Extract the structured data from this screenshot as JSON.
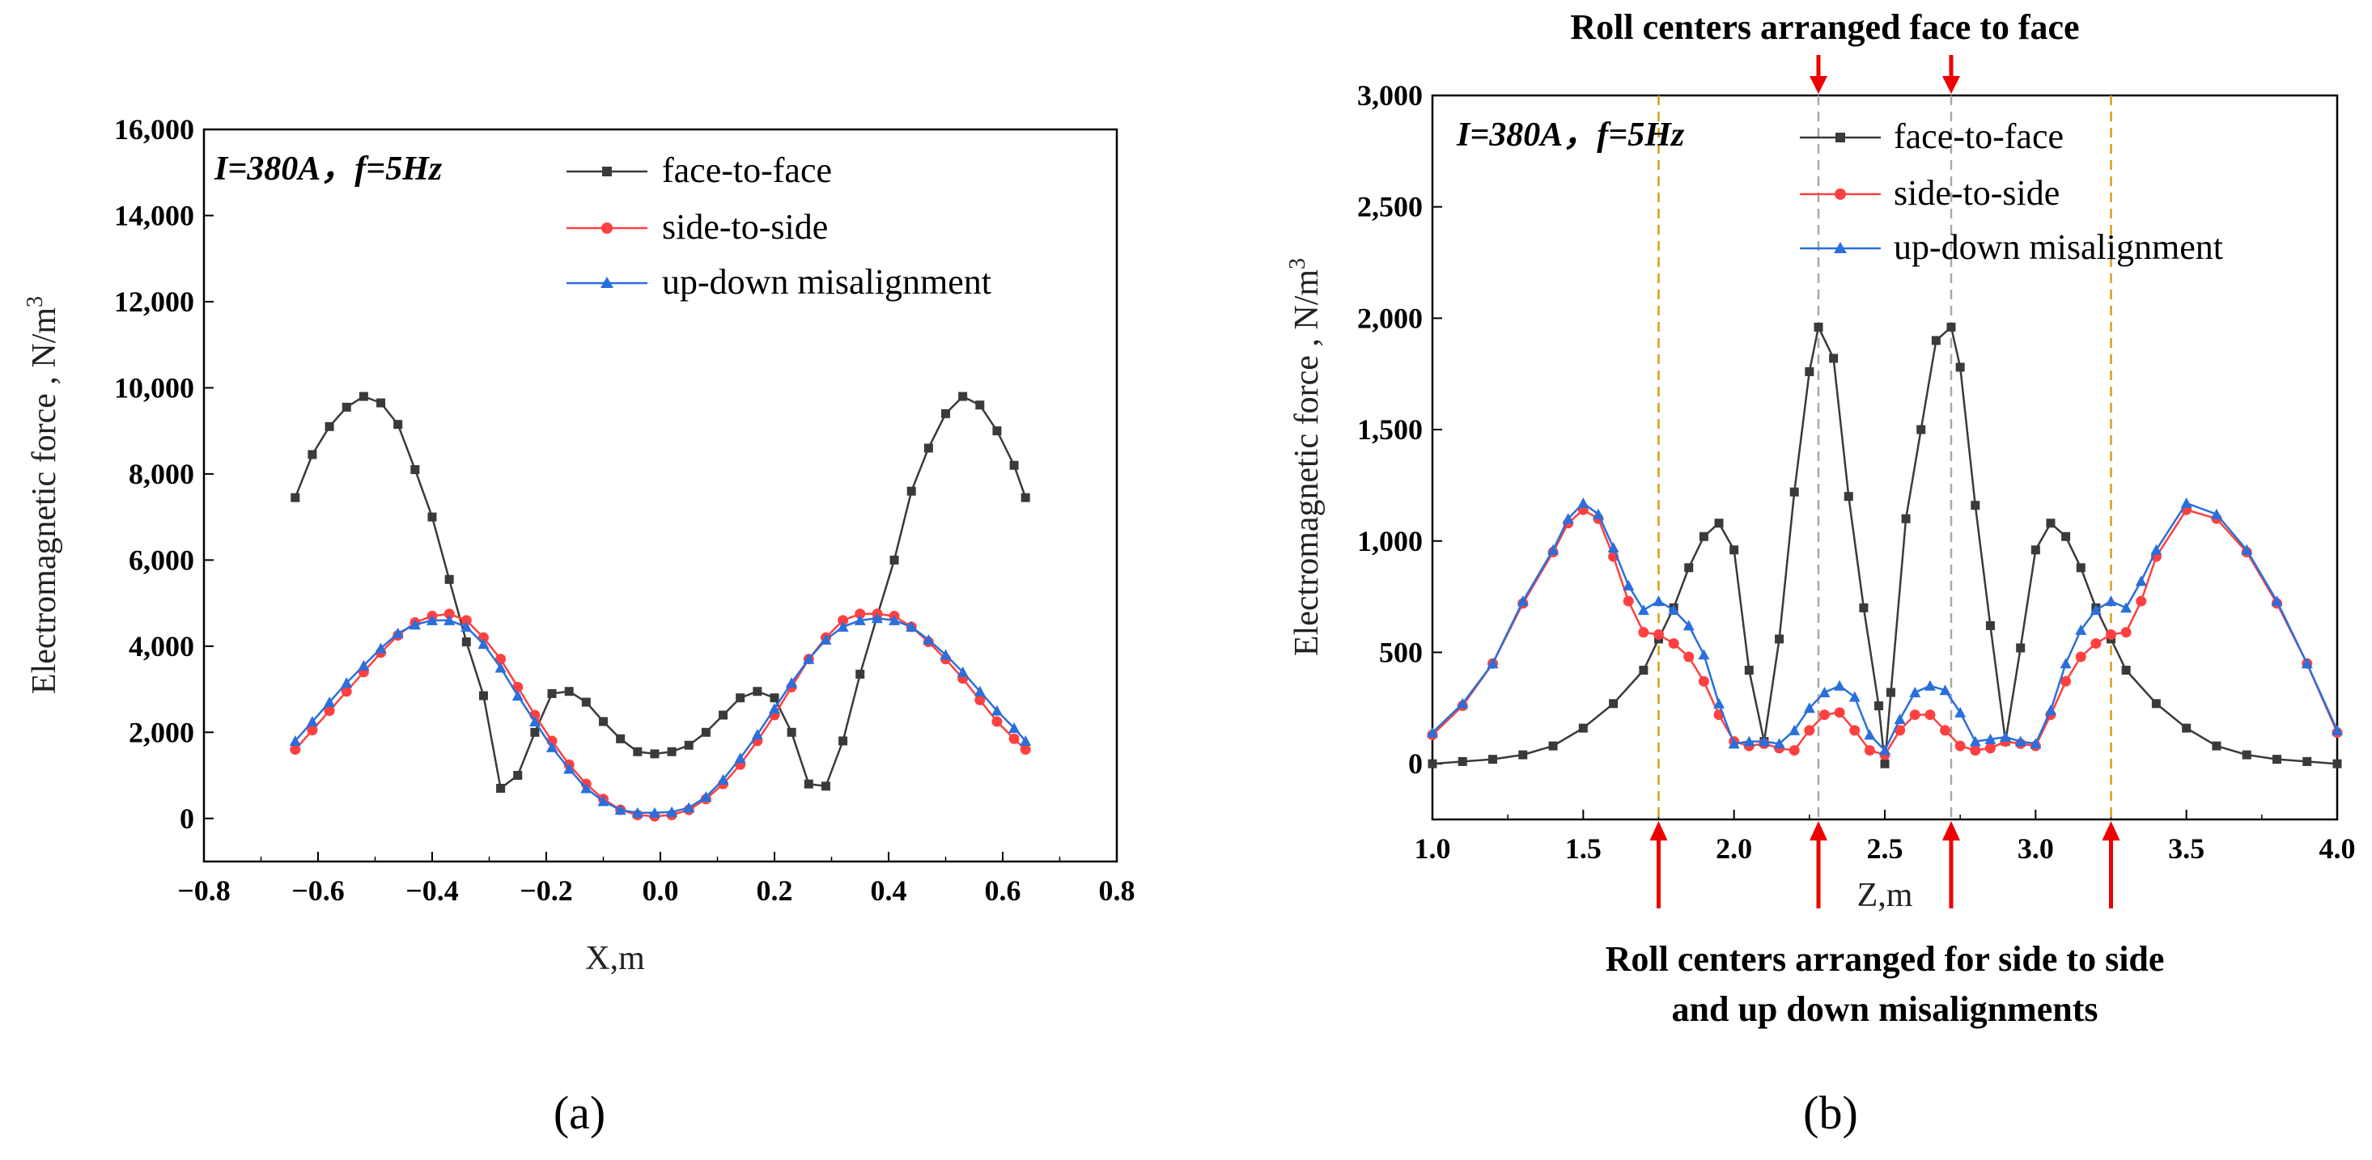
{
  "chart_data": [
    {
      "type": "line",
      "id": "a",
      "caption": "(a)",
      "annotation": "I=380A，f=5Hz",
      "xlabel": "X,m",
      "ylabel": "Electromagnetic force , N/m",
      "ylabel_sup": "3",
      "xlim": [
        -0.8,
        0.8
      ],
      "ylim": [
        -1000,
        16000
      ],
      "xticks": [
        -0.8,
        -0.6,
        -0.4,
        -0.2,
        0.0,
        0.2,
        0.4,
        0.6,
        0.8
      ],
      "xtick_labels": [
        "−0.8",
        "−0.6",
        "−0.4",
        "−0.2",
        "0.0",
        "0.2",
        "0.4",
        "0.6",
        "0.8"
      ],
      "yticks": [
        0,
        2000,
        4000,
        6000,
        8000,
        10000,
        12000,
        14000,
        16000
      ],
      "ytick_labels": [
        "0",
        "2,000",
        "4,000",
        "6,000",
        "8,000",
        "10,000",
        "12,000",
        "14,000",
        "16,000"
      ],
      "legend_position": "top-right",
      "series": [
        {
          "name": "face-to-face",
          "color": "#3a3a3a",
          "marker": "square",
          "x": [
            -0.64,
            -0.61,
            -0.58,
            -0.55,
            -0.52,
            -0.49,
            -0.46,
            -0.43,
            -0.4,
            -0.37,
            -0.34,
            -0.31,
            -0.28,
            -0.25,
            -0.22,
            -0.19,
            -0.16,
            -0.13,
            -0.1,
            -0.07,
            -0.04,
            -0.01,
            0.02,
            0.05,
            0.08,
            0.11,
            0.14,
            0.17,
            0.2,
            0.23,
            0.26,
            0.29,
            0.32,
            0.35,
            0.38,
            0.41,
            0.44,
            0.47,
            0.5,
            0.53,
            0.56,
            0.59,
            0.62,
            0.64
          ],
          "y": [
            7450,
            8450,
            9100,
            9550,
            9800,
            9650,
            9150,
            8100,
            7000,
            5550,
            4100,
            2850,
            700,
            1000,
            2000,
            2900,
            2950,
            2700,
            2250,
            1850,
            1550,
            1500,
            1550,
            1700,
            2000,
            2400,
            2800,
            2950,
            2800,
            2000,
            800,
            750,
            1800,
            3350,
            4700,
            6000,
            7600,
            8600,
            9400,
            9800,
            9600,
            9000,
            8200,
            7450
          ]
        },
        {
          "name": "side-to-side",
          "color": "#ff4040",
          "marker": "circle",
          "x": [
            -0.64,
            -0.61,
            -0.58,
            -0.55,
            -0.52,
            -0.49,
            -0.46,
            -0.43,
            -0.4,
            -0.37,
            -0.34,
            -0.31,
            -0.28,
            -0.25,
            -0.22,
            -0.19,
            -0.16,
            -0.13,
            -0.1,
            -0.07,
            -0.04,
            -0.01,
            0.02,
            0.05,
            0.08,
            0.11,
            0.14,
            0.17,
            0.2,
            0.23,
            0.26,
            0.29,
            0.32,
            0.35,
            0.38,
            0.41,
            0.44,
            0.47,
            0.5,
            0.53,
            0.56,
            0.59,
            0.62,
            0.64
          ],
          "y": [
            1600,
            2050,
            2500,
            2950,
            3400,
            3850,
            4250,
            4550,
            4700,
            4750,
            4600,
            4200,
            3700,
            3050,
            2400,
            1800,
            1250,
            800,
            450,
            200,
            80,
            50,
            80,
            200,
            450,
            800,
            1250,
            1800,
            2400,
            3050,
            3700,
            4200,
            4600,
            4750,
            4750,
            4700,
            4450,
            4100,
            3700,
            3250,
            2750,
            2250,
            1850,
            1600
          ]
        },
        {
          "name": "up-down misalignment",
          "color": "#2a6fdb",
          "marker": "triangle",
          "x": [
            -0.64,
            -0.61,
            -0.58,
            -0.55,
            -0.52,
            -0.49,
            -0.46,
            -0.43,
            -0.4,
            -0.37,
            -0.34,
            -0.31,
            -0.28,
            -0.25,
            -0.22,
            -0.19,
            -0.16,
            -0.13,
            -0.1,
            -0.07,
            -0.04,
            -0.01,
            0.02,
            0.05,
            0.08,
            0.11,
            0.14,
            0.17,
            0.2,
            0.23,
            0.26,
            0.29,
            0.32,
            0.35,
            0.38,
            0.41,
            0.44,
            0.47,
            0.5,
            0.53,
            0.56,
            0.59,
            0.62,
            0.64
          ],
          "y": [
            1800,
            2250,
            2700,
            3150,
            3550,
            3950,
            4300,
            4500,
            4600,
            4600,
            4450,
            4050,
            3500,
            2850,
            2250,
            1650,
            1150,
            700,
            400,
            200,
            130,
            130,
            150,
            250,
            500,
            900,
            1400,
            1950,
            2550,
            3150,
            3700,
            4150,
            4450,
            4600,
            4650,
            4600,
            4450,
            4150,
            3800,
            3400,
            2950,
            2500,
            2100,
            1800
          ]
        }
      ]
    },
    {
      "type": "line",
      "id": "b",
      "caption": "(b)",
      "annotation": "I=380A，f=5Hz",
      "xlabel": "Z,m",
      "ylabel": "Electromagnetic force , N/m",
      "ylabel_sup": "3",
      "xlim": [
        1.0,
        4.0
      ],
      "ylim": [
        -250,
        3000
      ],
      "xticks": [
        1.0,
        1.5,
        2.0,
        2.5,
        3.0,
        3.5,
        4.0
      ],
      "xtick_labels": [
        "1.0",
        "1.5",
        "2.0",
        "2.5",
        "3.0",
        "3.5",
        "4.0"
      ],
      "yticks": [
        0,
        500,
        1000,
        1500,
        2000,
        2500,
        3000
      ],
      "ytick_labels": [
        "0",
        "500",
        "1,000",
        "1,500",
        "2,000",
        "2,500",
        "3,000"
      ],
      "legend_position": "top-right",
      "top_note": "Roll centers arranged face to face",
      "bottom_note_line1": "Roll centers arranged for side to side",
      "bottom_note_line2": "and up down misalignments",
      "face_centers": [
        2.28,
        2.72
      ],
      "side_centers": [
        1.75,
        2.28,
        2.72,
        3.25
      ],
      "series": [
        {
          "name": "face-to-face",
          "color": "#3a3a3a",
          "marker": "square",
          "x": [
            1.0,
            1.1,
            1.2,
            1.3,
            1.4,
            1.5,
            1.6,
            1.7,
            1.75,
            1.8,
            1.85,
            1.9,
            1.95,
            2.0,
            2.05,
            2.1,
            2.15,
            2.2,
            2.25,
            2.28,
            2.33,
            2.38,
            2.43,
            2.48,
            2.5,
            2.52,
            2.57,
            2.62,
            2.67,
            2.72,
            2.75,
            2.8,
            2.85,
            2.9,
            2.95,
            3.0,
            3.05,
            3.1,
            3.15,
            3.2,
            3.25,
            3.3,
            3.4,
            3.5,
            3.6,
            3.7,
            3.8,
            3.9,
            4.0
          ],
          "y": [
            0,
            10,
            20,
            40,
            80,
            160,
            270,
            420,
            560,
            700,
            880,
            1020,
            1080,
            960,
            420,
            100,
            560,
            1220,
            1760,
            1960,
            1820,
            1200,
            700,
            260,
            0,
            320,
            1100,
            1500,
            1900,
            1960,
            1780,
            1160,
            620,
            100,
            520,
            960,
            1080,
            1020,
            880,
            700,
            560,
            420,
            270,
            160,
            80,
            40,
            20,
            10,
            0
          ]
        },
        {
          "name": "side-to-side",
          "color": "#ff4040",
          "marker": "circle",
          "x": [
            1.0,
            1.1,
            1.2,
            1.3,
            1.4,
            1.45,
            1.5,
            1.55,
            1.6,
            1.65,
            1.7,
            1.75,
            1.8,
            1.85,
            1.9,
            1.95,
            2.0,
            2.05,
            2.1,
            2.15,
            2.2,
            2.25,
            2.3,
            2.35,
            2.4,
            2.45,
            2.5,
            2.55,
            2.6,
            2.65,
            2.7,
            2.75,
            2.8,
            2.85,
            2.9,
            2.95,
            3.0,
            3.05,
            3.1,
            3.15,
            3.2,
            3.25,
            3.3,
            3.35,
            3.4,
            3.5,
            3.6,
            3.7,
            3.8,
            3.9,
            4.0
          ],
          "y": [
            130,
            260,
            450,
            720,
            950,
            1080,
            1140,
            1100,
            930,
            730,
            590,
            580,
            540,
            480,
            370,
            220,
            100,
            80,
            90,
            70,
            60,
            150,
            220,
            230,
            150,
            60,
            40,
            150,
            220,
            220,
            150,
            80,
            60,
            70,
            100,
            90,
            80,
            220,
            370,
            480,
            540,
            580,
            590,
            730,
            930,
            1140,
            1100,
            950,
            720,
            450,
            140
          ]
        },
        {
          "name": "up-down misalignment",
          "color": "#2a6fdb",
          "marker": "triangle",
          "x": [
            1.0,
            1.1,
            1.2,
            1.3,
            1.4,
            1.45,
            1.5,
            1.55,
            1.6,
            1.65,
            1.7,
            1.75,
            1.8,
            1.85,
            1.9,
            1.95,
            2.0,
            2.05,
            2.1,
            2.15,
            2.2,
            2.25,
            2.3,
            2.35,
            2.4,
            2.45,
            2.5,
            2.55,
            2.6,
            2.65,
            2.7,
            2.75,
            2.8,
            2.85,
            2.9,
            2.95,
            3.0,
            3.05,
            3.1,
            3.15,
            3.2,
            3.25,
            3.3,
            3.35,
            3.4,
            3.5,
            3.6,
            3.7,
            3.8,
            3.9,
            4.0
          ],
          "y": [
            140,
            270,
            450,
            730,
            960,
            1100,
            1170,
            1120,
            970,
            800,
            690,
            730,
            690,
            620,
            490,
            270,
            90,
            100,
            100,
            90,
            150,
            250,
            320,
            350,
            300,
            130,
            60,
            200,
            320,
            350,
            330,
            230,
            100,
            110,
            120,
            100,
            90,
            240,
            450,
            600,
            690,
            730,
            700,
            820,
            960,
            1170,
            1120,
            960,
            730,
            450,
            150
          ]
        }
      ]
    }
  ]
}
